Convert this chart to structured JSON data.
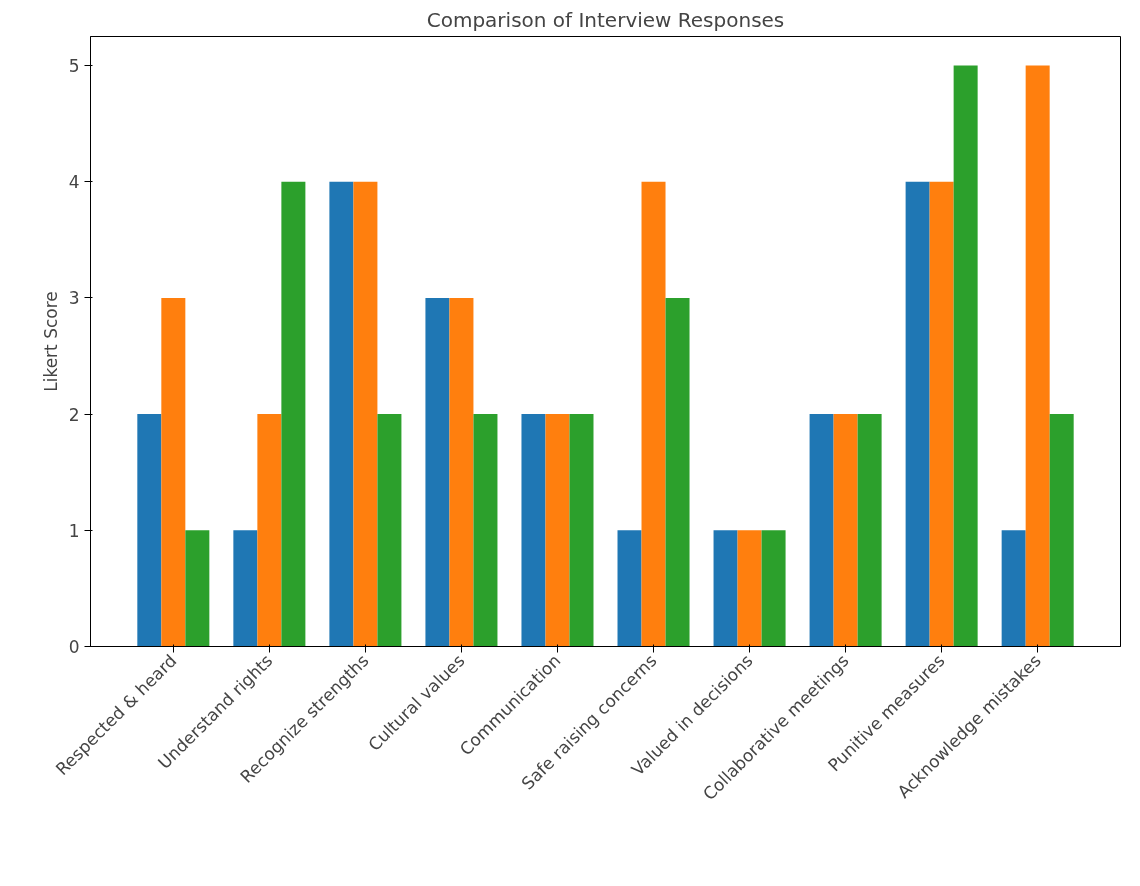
{
  "chart_data": {
    "type": "bar",
    "title": "Comparison of Interview Responses",
    "ylabel": "Likert Score",
    "categories": [
      "Respected & heard",
      "Understand rights",
      "Recognize strengths",
      "Cultural values",
      "Communication",
      "Safe raising concerns",
      "Valued in decisions",
      "Collaborative meetings",
      "Punitive measures",
      "Acknowledge mistakes"
    ],
    "series": [
      {
        "color": "#1f77b4",
        "values": [
          2,
          1,
          4,
          3,
          2,
          1,
          1,
          2,
          4,
          1
        ]
      },
      {
        "color": "#ff7f0e",
        "values": [
          3,
          2,
          4,
          3,
          2,
          4,
          1,
          2,
          4,
          5
        ]
      },
      {
        "color": "#2ca02c",
        "values": [
          1,
          4,
          2,
          2,
          2,
          3,
          1,
          2,
          5,
          2
        ]
      }
    ],
    "ylim": [
      0,
      5.25
    ],
    "yticks": [
      0,
      1,
      2,
      3,
      4,
      5
    ],
    "grid": false
  }
}
